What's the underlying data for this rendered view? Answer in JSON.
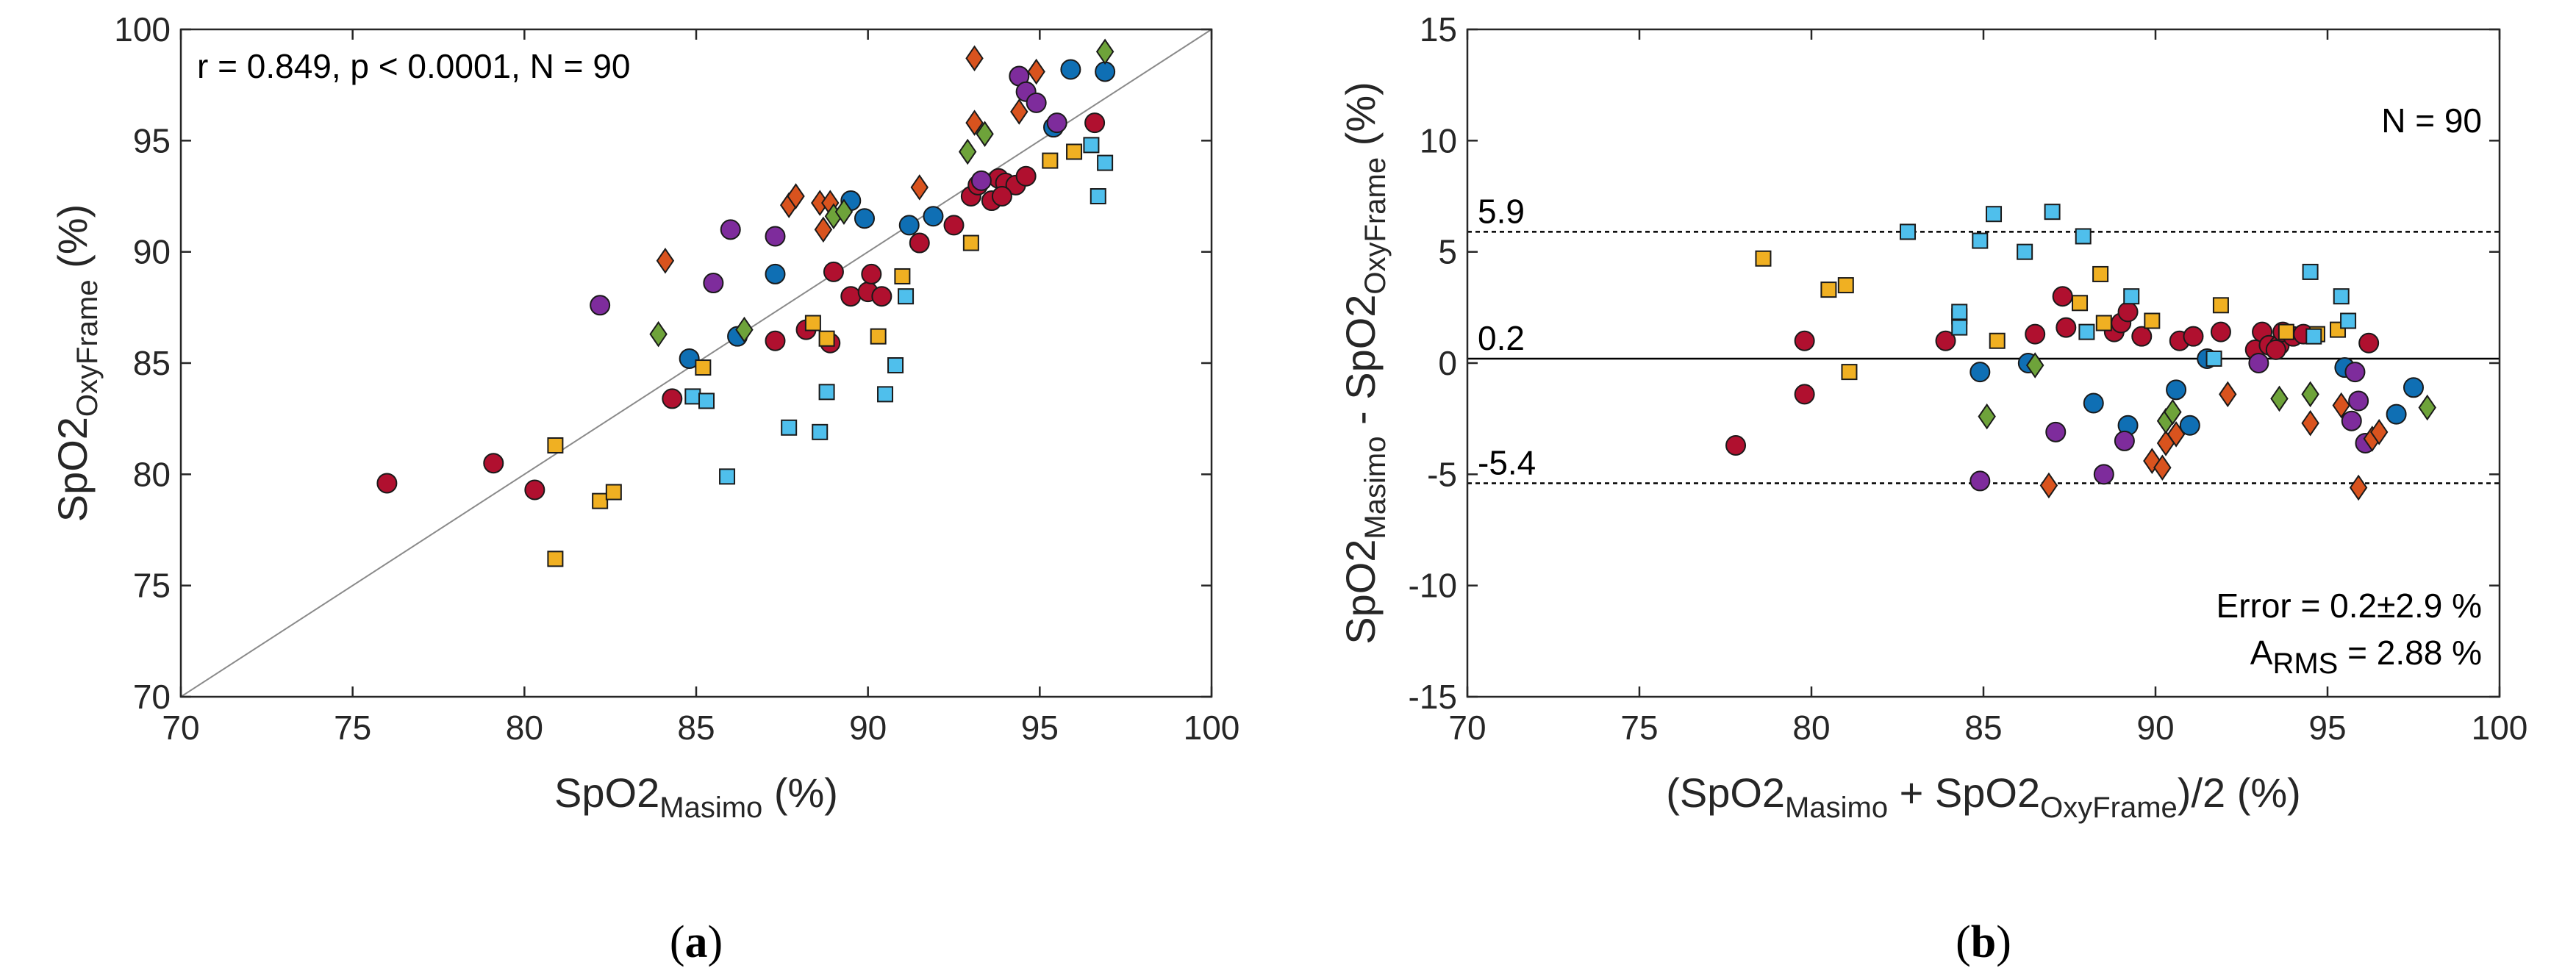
{
  "colors": {
    "red": "#b0102f",
    "blue": "#0f6fb4",
    "purple": "#7e2c9c",
    "orange": "#d9531e",
    "green": "#6ea33a",
    "yellow": "#f0b022",
    "lightblue": "#4fbfec"
  },
  "panel_labels": {
    "a_open": "(",
    "a_letter": "a",
    "a_close": ")",
    "b_open": "(",
    "b_letter": "b",
    "b_close": ")"
  },
  "chart_data": [
    {
      "id": "a",
      "type": "scatter",
      "title": "",
      "xlabel_main": "SpO2",
      "xlabel_sub": "Masimo",
      "xlabel_unit": " (%)",
      "ylabel_main": "SpO2",
      "ylabel_sub": "OxyFrame",
      "ylabel_unit": " (%)",
      "xlim": [
        70,
        100
      ],
      "ylim": [
        70,
        100
      ],
      "xticks": [
        "70",
        "75",
        "80",
        "85",
        "90",
        "95",
        "100"
      ],
      "yticks": [
        "70",
        "75",
        "80",
        "85",
        "90",
        "95",
        "100"
      ],
      "annotation": "r = 0.849, p < 0.0001, N = 90",
      "reference_line": "identity (y = x)",
      "series": [
        {
          "name": "red",
          "marker": "circle",
          "points": [
            [
              76,
              79.6
            ],
            [
              79.1,
              80.5
            ],
            [
              80.3,
              79.3
            ],
            [
              84.3,
              83.4
            ],
            [
              87.3,
              86
            ],
            [
              88.2,
              86.5
            ],
            [
              88.9,
              85.9
            ],
            [
              89,
              89.1
            ],
            [
              89.5,
              88
            ],
            [
              90,
              88.2
            ],
            [
              90.1,
              89
            ],
            [
              90.4,
              88
            ],
            [
              91.5,
              90.4
            ],
            [
              92.5,
              91.2
            ],
            [
              93,
              92.5
            ],
            [
              93.2,
              93
            ],
            [
              93.6,
              92.3
            ],
            [
              93.8,
              93.3
            ],
            [
              94,
              93.1
            ],
            [
              94.3,
              93
            ],
            [
              94.6,
              93.4
            ],
            [
              96.6,
              95.8
            ],
            [
              93.9,
              92.5
            ]
          ]
        },
        {
          "name": "blue",
          "marker": "circle",
          "points": [
            [
              84.8,
              85.2
            ],
            [
              86.2,
              86.2
            ],
            [
              87.3,
              89
            ],
            [
              89.5,
              92.3
            ],
            [
              89.9,
              91.5
            ],
            [
              91.2,
              91.2
            ],
            [
              91.9,
              91.6
            ],
            [
              95.4,
              95.6
            ],
            [
              95.9,
              98.2
            ],
            [
              96.9,
              98.1
            ]
          ]
        },
        {
          "name": "purple",
          "marker": "circle",
          "points": [
            [
              82.2,
              87.6
            ],
            [
              85.5,
              88.6
            ],
            [
              86,
              91
            ],
            [
              87.3,
              90.7
            ],
            [
              94.4,
              97.9
            ],
            [
              94.6,
              97.2
            ],
            [
              94.9,
              96.7
            ],
            [
              95.5,
              95.8
            ],
            [
              93.3,
              93.2
            ]
          ]
        },
        {
          "name": "orange",
          "marker": "diamond",
          "points": [
            [
              84.1,
              89.6
            ],
            [
              87.7,
              92.1
            ],
            [
              87.9,
              92.5
            ],
            [
              88.6,
              92.2
            ],
            [
              88.7,
              91
            ],
            [
              88.9,
              92.2
            ],
            [
              91.5,
              92.9
            ],
            [
              93.1,
              98.7
            ],
            [
              93.1,
              95.8
            ],
            [
              94.4,
              96.3
            ],
            [
              94.9,
              98.1
            ]
          ]
        },
        {
          "name": "green",
          "marker": "diamond",
          "points": [
            [
              83.9,
              86.3
            ],
            [
              86.4,
              86.5
            ],
            [
              89,
              91.6
            ],
            [
              89.3,
              91.8
            ],
            [
              92.9,
              94.5
            ],
            [
              93.4,
              95.3
            ],
            [
              96.9,
              99
            ]
          ]
        },
        {
          "name": "yellow",
          "marker": "square",
          "points": [
            [
              80.9,
              81.3
            ],
            [
              80.9,
              76.2
            ],
            [
              82.2,
              78.8
            ],
            [
              82.6,
              79.2
            ],
            [
              85.2,
              84.8
            ],
            [
              88.4,
              86.8
            ],
            [
              88.8,
              86.1
            ],
            [
              90.3,
              86.2
            ],
            [
              91,
              88.9
            ],
            [
              93,
              90.4
            ],
            [
              95.3,
              94.1
            ],
            [
              96,
              94.5
            ]
          ]
        },
        {
          "name": "lightblue",
          "marker": "square",
          "points": [
            [
              84.9,
              83.5
            ],
            [
              85.3,
              83.3
            ],
            [
              85.9,
              79.9
            ],
            [
              87.7,
              82.1
            ],
            [
              88.6,
              81.9
            ],
            [
              88.8,
              83.7
            ],
            [
              90.5,
              83.6
            ],
            [
              90.8,
              84.9
            ],
            [
              91.1,
              88
            ],
            [
              96.5,
              94.8
            ],
            [
              96.7,
              92.5
            ],
            [
              96.9,
              94
            ]
          ]
        }
      ]
    },
    {
      "id": "b",
      "type": "scatter",
      "title": "",
      "xlabel_open": "(SpO2",
      "xlabel_sub1": "Masimo",
      "xlabel_mid": " + SpO2",
      "xlabel_sub2": "OxyFrame",
      "xlabel_close": ")/2 (%)",
      "ylabel_a": "SpO2",
      "ylabel_sub1": "Masimo",
      "ylabel_b": " - SpO2",
      "ylabel_sub2": "OxyFrame",
      "ylabel_c": " (%)",
      "xlim": [
        70,
        100
      ],
      "ylim": [
        -15,
        15
      ],
      "xticks": [
        "70",
        "75",
        "80",
        "85",
        "90",
        "95",
        "100"
      ],
      "yticks": [
        "-15",
        "-10",
        "-5",
        "0",
        "5",
        "10",
        "15"
      ],
      "mean_line": 0.2,
      "upper_loa": 5.9,
      "lower_loa": -5.4,
      "mean_label": "0.2",
      "upper_label": "5.9",
      "lower_label": "-5.4",
      "n_label": "N = 90",
      "error_label": "Error = 0.2±2.9 %",
      "arms_main": "A",
      "arms_sub": "RMS",
      "arms_value": " = 2.88 %",
      "series": [
        {
          "name": "red",
          "marker": "circle",
          "points": [
            [
              77.8,
              -3.7
            ],
            [
              79.8,
              1
            ],
            [
              79.8,
              -1.4
            ],
            [
              83.9,
              1
            ],
            [
              86.5,
              1.3
            ],
            [
              87.3,
              3
            ],
            [
              87.4,
              1.6
            ],
            [
              88.8,
              1.4
            ],
            [
              89,
              1.8
            ],
            [
              89.2,
              2.3
            ],
            [
              89.6,
              1.2
            ],
            [
              90.7,
              1
            ],
            [
              91.1,
              1.2
            ],
            [
              91.9,
              1.4
            ],
            [
              92.9,
              0.6
            ],
            [
              93.1,
              1.4
            ],
            [
              93.3,
              0.8
            ],
            [
              93.6,
              0.8
            ],
            [
              93.7,
              1.4
            ],
            [
              94,
              1.2
            ],
            [
              94.3,
              1.3
            ],
            [
              96.2,
              0.9
            ],
            [
              93.5,
              0.6
            ]
          ]
        },
        {
          "name": "blue",
          "marker": "circle",
          "points": [
            [
              84.9,
              -0.4
            ],
            [
              86.3,
              0
            ],
            [
              88.2,
              -1.8
            ],
            [
              89.2,
              -2.8
            ],
            [
              90.6,
              -1.2
            ],
            [
              91,
              -2.8
            ],
            [
              91.5,
              0.2
            ],
            [
              95.5,
              -0.2
            ],
            [
              97,
              -2.3
            ],
            [
              97.5,
              -1.1
            ]
          ]
        },
        {
          "name": "purple",
          "marker": "circle",
          "points": [
            [
              84.9,
              -5.3
            ],
            [
              87.1,
              -3.1
            ],
            [
              88.5,
              -5
            ],
            [
              89.1,
              -3.5
            ],
            [
              93,
              0
            ],
            [
              95.8,
              -0.4
            ],
            [
              95.9,
              -1.7
            ],
            [
              95.7,
              -2.6
            ],
            [
              96.1,
              -3.6
            ]
          ]
        },
        {
          "name": "orange",
          "marker": "diamond",
          "points": [
            [
              86.9,
              -5.5
            ],
            [
              89.9,
              -4.4
            ],
            [
              90.2,
              -4.7
            ],
            [
              90.3,
              -3.6
            ],
            [
              90.6,
              -3.2
            ],
            [
              92.1,
              -1.4
            ],
            [
              94.5,
              -2.7
            ],
            [
              95.4,
              -1.9
            ],
            [
              95.9,
              -5.6
            ],
            [
              96.3,
              -3.4
            ],
            [
              96.5,
              -3.1
            ]
          ]
        },
        {
          "name": "green",
          "marker": "diamond",
          "points": [
            [
              85.1,
              -2.4
            ],
            [
              86.5,
              -0.1
            ],
            [
              90.3,
              -2.6
            ],
            [
              90.5,
              -2.2
            ],
            [
              93.6,
              -1.6
            ],
            [
              94.5,
              -1.4
            ],
            [
              97.9,
              -2
            ]
          ]
        },
        {
          "name": "yellow",
          "marker": "square",
          "points": [
            [
              78.6,
              4.7
            ],
            [
              80.5,
              3.3
            ],
            [
              81,
              3.5
            ],
            [
              81.1,
              -0.4
            ],
            [
              85.4,
              1
            ],
            [
              87.8,
              2.7
            ],
            [
              88.4,
              4
            ],
            [
              88.5,
              1.8
            ],
            [
              89.9,
              1.9
            ],
            [
              91.9,
              2.6
            ],
            [
              94.7,
              1.3
            ],
            [
              95.3,
              1.5
            ],
            [
              93.8,
              1.4
            ]
          ]
        },
        {
          "name": "lightblue",
          "marker": "square",
          "points": [
            [
              82.8,
              5.9
            ],
            [
              84.3,
              2.1
            ],
            [
              84.3,
              1.6
            ],
            [
              84.9,
              5.5
            ],
            [
              85.3,
              6.7
            ],
            [
              86.2,
              5
            ],
            [
              87,
              6.8
            ],
            [
              87.9,
              5.7
            ],
            [
              89.3,
              3
            ],
            [
              94.5,
              4.1
            ],
            [
              95.4,
              3
            ],
            [
              95.6,
              1.9
            ],
            [
              94.6,
              1.2
            ],
            [
              91.7,
              0.2
            ],
            [
              88,
              1.4
            ],
            [
              84.3,
              2.3
            ]
          ]
        }
      ]
    }
  ]
}
